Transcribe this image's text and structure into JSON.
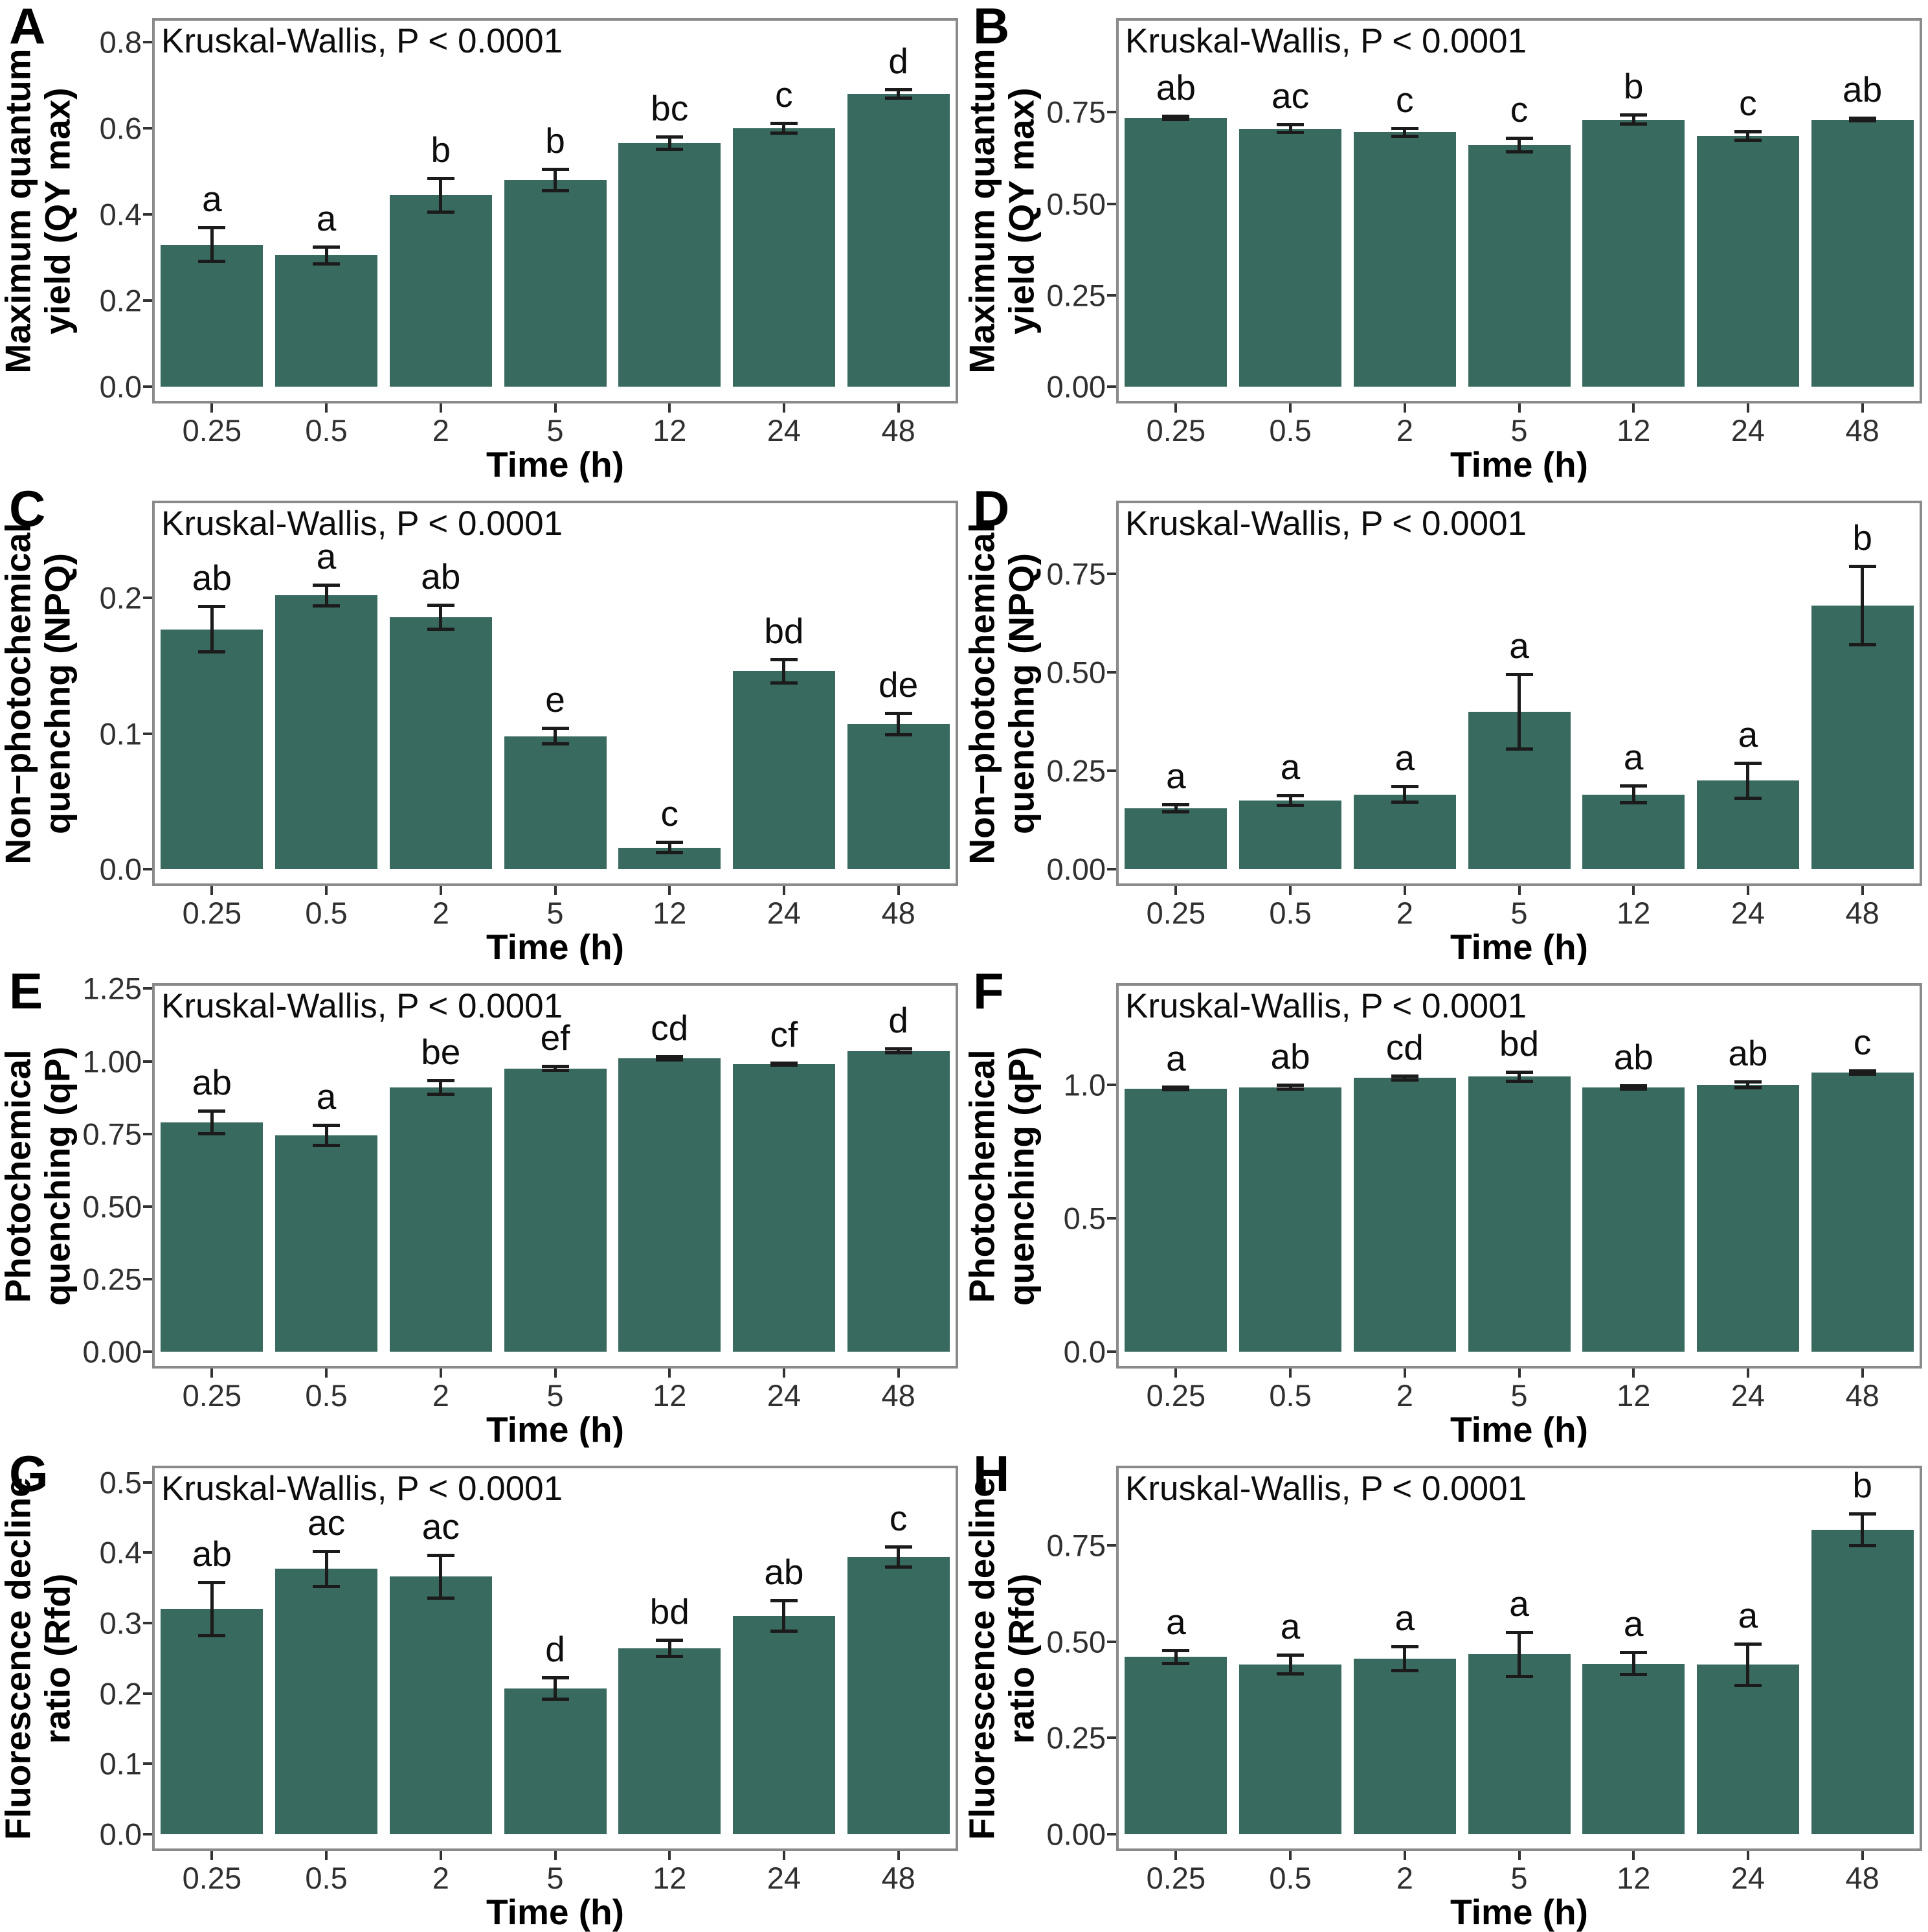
{
  "figure": {
    "stat_label": "Kruskal-Wallis, P < 0.0001",
    "x_axis_label": "Time (h)",
    "categories": [
      "0.25",
      "0.5",
      "2",
      "5",
      "12",
      "24",
      "48"
    ],
    "bar_color": "#396A60",
    "error_bar_color": "#1b1b1b",
    "panel_border_color": "#8a8a8a"
  },
  "chart_data": [
    {
      "panel": "A",
      "type": "bar",
      "title": "Kruskal-Wallis, P < 0.0001",
      "xlabel": "Time (h)",
      "ylabel": "Maximum quantum yield (QY max)",
      "ylabel_lines": [
        "Maximum quantum",
        "yield (QY max)"
      ],
      "categories": [
        "0.25",
        "0.5",
        "2",
        "5",
        "12",
        "24",
        "48"
      ],
      "values": [
        0.33,
        0.305,
        0.445,
        0.48,
        0.565,
        0.6,
        0.68
      ],
      "errors": [
        0.04,
        0.02,
        0.04,
        0.025,
        0.015,
        0.012,
        0.01
      ],
      "sig_letters": [
        "a",
        "a",
        "b",
        "b",
        "bc",
        "c",
        "d"
      ],
      "ytick_labels": [
        "0.0",
        "0.2",
        "0.4",
        "0.6",
        "0.8"
      ],
      "ytick_values": [
        0,
        0.2,
        0.4,
        0.6,
        0.8
      ],
      "ylim": [
        0,
        0.85
      ],
      "grid": false,
      "legend": false
    },
    {
      "panel": "B",
      "type": "bar",
      "title": "Kruskal-Wallis, P < 0.0001",
      "xlabel": "Time (h)",
      "ylabel": "Maximum quantum yield (QY max)",
      "ylabel_lines": [
        "Maximum quantum",
        "yield (QY max)"
      ],
      "categories": [
        "0.25",
        "0.5",
        "2",
        "5",
        "12",
        "24",
        "48"
      ],
      "values": [
        0.735,
        0.705,
        0.695,
        0.66,
        0.73,
        0.685,
        0.73
      ],
      "errors": [
        0.005,
        0.012,
        0.012,
        0.02,
        0.013,
        0.013,
        0.005
      ],
      "sig_letters": [
        "ab",
        "ac",
        "c",
        "c",
        "b",
        "c",
        "ab"
      ],
      "ytick_labels": [
        "0.00",
        "0.25",
        "0.50",
        "0.75"
      ],
      "ytick_values": [
        0,
        0.25,
        0.5,
        0.75
      ],
      "ylim": [
        0,
        1.0
      ],
      "grid": false,
      "legend": false
    },
    {
      "panel": "C",
      "type": "bar",
      "title": "Kruskal-Wallis, P < 0.0001",
      "xlabel": "Time (h)",
      "ylabel": "Non-photochemical quenchng (NPQ)",
      "ylabel_lines": [
        "Non−photochemical",
        "quenchng (NPQ)"
      ],
      "categories": [
        "0.25",
        "0.5",
        "2",
        "5",
        "12",
        "24",
        "48"
      ],
      "values": [
        0.177,
        0.202,
        0.186,
        0.098,
        0.016,
        0.146,
        0.107
      ],
      "errors": [
        0.017,
        0.008,
        0.009,
        0.006,
        0.004,
        0.009,
        0.008
      ],
      "sig_letters": [
        "ab",
        "a",
        "ab",
        "e",
        "c",
        "bd",
        "de"
      ],
      "ytick_labels": [
        "0.0",
        "0.1",
        "0.2"
      ],
      "ytick_values": [
        0,
        0.1,
        0.2
      ],
      "ylim": [
        0,
        0.27
      ],
      "grid": false,
      "legend": false
    },
    {
      "panel": "D",
      "type": "bar",
      "title": "Kruskal-Wallis, P < 0.0001",
      "xlabel": "Time (h)",
      "ylabel": "Non-photochemical quenchng (NPQ)",
      "ylabel_lines": [
        "Non−photochemical",
        "quenchng (NPQ)"
      ],
      "categories": [
        "0.25",
        "0.5",
        "2",
        "5",
        "12",
        "24",
        "48"
      ],
      "values": [
        0.155,
        0.175,
        0.19,
        0.4,
        0.19,
        0.225,
        0.67
      ],
      "errors": [
        0.01,
        0.013,
        0.02,
        0.095,
        0.022,
        0.045,
        0.1
      ],
      "sig_letters": [
        "a",
        "a",
        "a",
        "a",
        "a",
        "a",
        "b"
      ],
      "ytick_labels": [
        "0.00",
        "0.25",
        "0.50",
        "0.75"
      ],
      "ytick_values": [
        0,
        0.25,
        0.5,
        0.75
      ],
      "ylim": [
        0,
        0.93
      ],
      "grid": false,
      "legend": false
    },
    {
      "panel": "E",
      "type": "bar",
      "title": "Kruskal-Wallis, P < 0.0001",
      "xlabel": "Time (h)",
      "ylabel": "Photochemical quenching (qP)",
      "ylabel_lines": [
        "Photochemical",
        "quenching (qP)"
      ],
      "categories": [
        "0.25",
        "0.5",
        "2",
        "5",
        "12",
        "24",
        "48"
      ],
      "values": [
        0.79,
        0.745,
        0.91,
        0.975,
        1.01,
        0.99,
        1.035
      ],
      "errors": [
        0.04,
        0.035,
        0.025,
        0.008,
        0.006,
        0.005,
        0.008
      ],
      "sig_letters": [
        "ab",
        "a",
        "be",
        "ef",
        "cd",
        "cf",
        "d"
      ],
      "ytick_labels": [
        "0.00",
        "0.25",
        "0.50",
        "0.75",
        "1.00",
        "1.25"
      ],
      "ytick_values": [
        0,
        0.25,
        0.5,
        0.75,
        1.0,
        1.25
      ],
      "ylim": [
        0,
        1.26
      ],
      "grid": false,
      "legend": false
    },
    {
      "panel": "F",
      "type": "bar",
      "title": "Kruskal-Wallis, P < 0.0001",
      "xlabel": "Time (h)",
      "ylabel": "Photochemical quenching (qP)",
      "ylabel_lines": [
        "Photochemical",
        "quenching (qP)"
      ],
      "categories": [
        "0.25",
        "0.5",
        "2",
        "5",
        "12",
        "24",
        "48"
      ],
      "values": [
        0.985,
        0.99,
        1.025,
        1.03,
        0.99,
        1.0,
        1.045
      ],
      "errors": [
        0.006,
        0.008,
        0.008,
        0.018,
        0.007,
        0.012,
        0.008
      ],
      "sig_letters": [
        "a",
        "ab",
        "cd",
        "bd",
        "ab",
        "ab",
        "c"
      ],
      "ytick_labels": [
        "0.0",
        "0.5",
        "1.0"
      ],
      "ytick_values": [
        0,
        0.5,
        1.0
      ],
      "ylim": [
        0,
        1.37
      ],
      "grid": false,
      "legend": false
    },
    {
      "panel": "G",
      "type": "bar",
      "title": "Kruskal-Wallis, P < 0.0001",
      "xlabel": "Time (h)",
      "ylabel": "Fluorescence decline ratio (Rfd)",
      "ylabel_lines": [
        "Fluorescence decline",
        "ratio (Rfd)"
      ],
      "categories": [
        "0.25",
        "0.5",
        "2",
        "5",
        "12",
        "24",
        "48"
      ],
      "values": [
        0.32,
        0.377,
        0.366,
        0.207,
        0.264,
        0.31,
        0.394
      ],
      "errors": [
        0.038,
        0.025,
        0.031,
        0.016,
        0.012,
        0.022,
        0.015
      ],
      "sig_letters": [
        "ab",
        "ac",
        "ac",
        "d",
        "bd",
        "ab",
        "c"
      ],
      "ytick_labels": [
        "0.0",
        "0.1",
        "0.2",
        "0.3",
        "0.4",
        "0.5"
      ],
      "ytick_values": [
        0,
        0.1,
        0.2,
        0.3,
        0.4,
        0.5
      ],
      "ylim": [
        0,
        0.52
      ],
      "grid": false,
      "legend": false
    },
    {
      "panel": "H",
      "type": "bar",
      "title": "Kruskal-Wallis, P < 0.0001",
      "xlabel": "Time (h)",
      "ylabel": "Fluorescence decline ratio (Rfd)",
      "ylabel_lines": [
        "Fluorescence decline",
        "ratio (Rfd)"
      ],
      "categories": [
        "0.25",
        "0.5",
        "2",
        "5",
        "12",
        "24",
        "48"
      ],
      "values": [
        0.46,
        0.44,
        0.455,
        0.467,
        0.443,
        0.44,
        0.79
      ],
      "errors": [
        0.018,
        0.025,
        0.032,
        0.058,
        0.03,
        0.055,
        0.042
      ],
      "sig_letters": [
        "a",
        "a",
        "a",
        "a",
        "a",
        "a",
        "b"
      ],
      "ytick_labels": [
        "0.00",
        "0.25",
        "0.50",
        "0.75"
      ],
      "ytick_values": [
        0,
        0.25,
        0.5,
        0.75
      ],
      "ylim": [
        0,
        0.95
      ],
      "grid": false,
      "legend": false
    }
  ]
}
